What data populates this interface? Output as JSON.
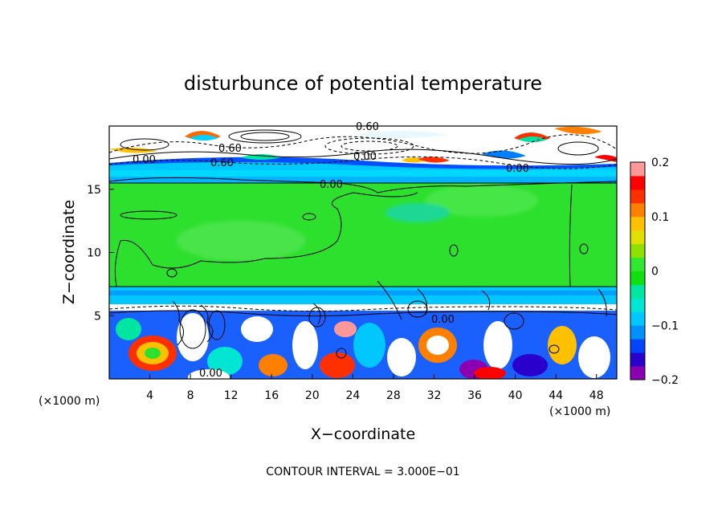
{
  "chart_data": {
    "type": "heatmap",
    "title": "disturbunce of potential temperature",
    "xlabel": "X−coordinate",
    "ylabel": "Z−coordinate",
    "x_unit_left": "(×1000 m)",
    "x_unit_right": "(×1000 m)",
    "xlim": [
      0,
      50
    ],
    "ylim": [
      0,
      20
    ],
    "xticks": [
      4,
      8,
      12,
      16,
      20,
      24,
      28,
      32,
      36,
      40,
      44,
      48
    ],
    "yticks": [
      5,
      10,
      15
    ],
    "footer": "CONTOUR INTERVAL = 3.000E−01",
    "colorbar": {
      "ticks": [
        0.2,
        0.1,
        0,
        -0.1,
        -0.2
      ],
      "tick_labels": [
        "0.2",
        "0.1",
        "0",
        "−0.1",
        "−0.2"
      ],
      "range": [
        -0.2,
        0.2
      ],
      "colors": [
        "#8b00b0",
        "#2a00cc",
        "#0044ff",
        "#0090ff",
        "#00c8ff",
        "#00e6d2",
        "#00e6a0",
        "#10e010",
        "#30e830",
        "#90e000",
        "#e0e000",
        "#ffc000",
        "#ff8000",
        "#ff3000",
        "#ff0000",
        "#ff9999"
      ]
    },
    "bands": [
      {
        "z": [
          0,
          5.3
        ],
        "field": "turbulent mix of strong positive and negative values"
      },
      {
        "z": [
          5.3,
          5.7
        ],
        "field": "white (|value| > range)"
      },
      {
        "z": [
          5.7,
          7.2
        ],
        "field": "approx. -0.05 (cyan/blue)"
      },
      {
        "z": [
          7.2,
          15.4
        ],
        "field": "approx. 0 (green)"
      },
      {
        "z": [
          15.4,
          16.4
        ],
        "field": "approx. -0.07 (cyan/blue)"
      },
      {
        "z": [
          16.4,
          20
        ],
        "field": "white with multicolored edges, wavy contours"
      }
    ],
    "contour_labels": [
      "0.60",
      "0.00",
      "0.60",
      "0.00",
      "0.60",
      "0.00",
      "0.00",
      "0.00",
      "0.00"
    ]
  }
}
